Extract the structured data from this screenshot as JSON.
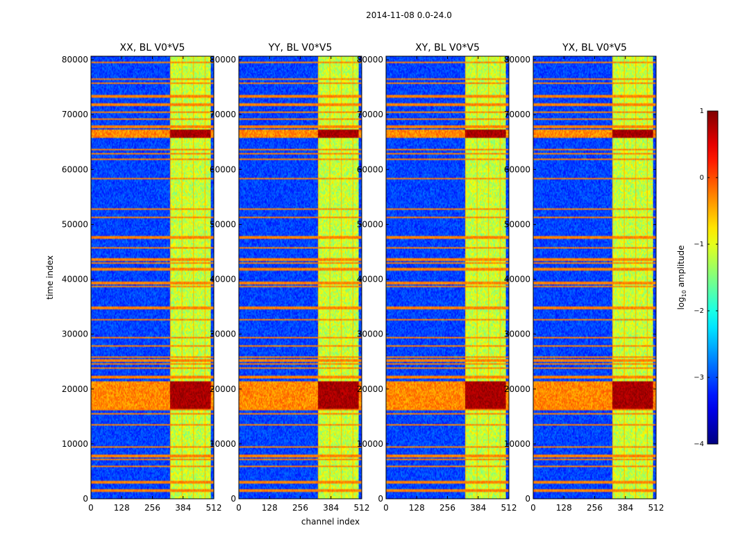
{
  "suptitle": "2014-11-08 0.0-24.0",
  "shared_xlabel": "channel index",
  "shared_ylabel": "time index",
  "chart_data": {
    "type": "heatmap",
    "panels": [
      {
        "title": "XX, BL V0*V5"
      },
      {
        "title": "YY, BL V0*V5"
      },
      {
        "title": "XY, BL V0*V5"
      },
      {
        "title": "YX, BL V0*V5"
      }
    ],
    "x": {
      "min": 0,
      "max": 512,
      "ticks": [
        0,
        128,
        256,
        384,
        512
      ]
    },
    "y": {
      "min": 0,
      "max": 80640,
      "ticks": [
        0,
        10000,
        20000,
        30000,
        40000,
        50000,
        60000,
        70000,
        80000
      ]
    },
    "colorbar": {
      "label_prefix": "log",
      "label_sub": "10",
      "label_suffix": " amplitude",
      "min": -4,
      "max": 1,
      "ticks": [
        -4,
        -3,
        -2,
        -1,
        0,
        1
      ],
      "tick_labels": [
        "−4",
        "−3",
        "−2",
        "−1",
        "0",
        "1"
      ],
      "colormap": "jet"
    },
    "regions": {
      "bright_channel_block": [
        330,
        500
      ],
      "strong_rfi_time_ranges": [
        [
          16500,
          21500
        ],
        [
          65800,
          67300
        ]
      ],
      "rfi_time_rows": [
        1500,
        3000,
        6000,
        7200,
        7800,
        9500,
        13500,
        15500,
        16200,
        17500,
        18000,
        18800,
        19500,
        20500,
        21000,
        22200,
        23800,
        24600,
        25200,
        25800,
        27800,
        29300,
        32600,
        34800,
        38700,
        39300,
        41800,
        42900,
        43600,
        45800,
        47600,
        51200,
        52800,
        58300,
        61800,
        62800,
        63600,
        66200,
        67800,
        69200,
        70500,
        71800,
        73300,
        75800,
        76400,
        79500
      ]
    }
  }
}
